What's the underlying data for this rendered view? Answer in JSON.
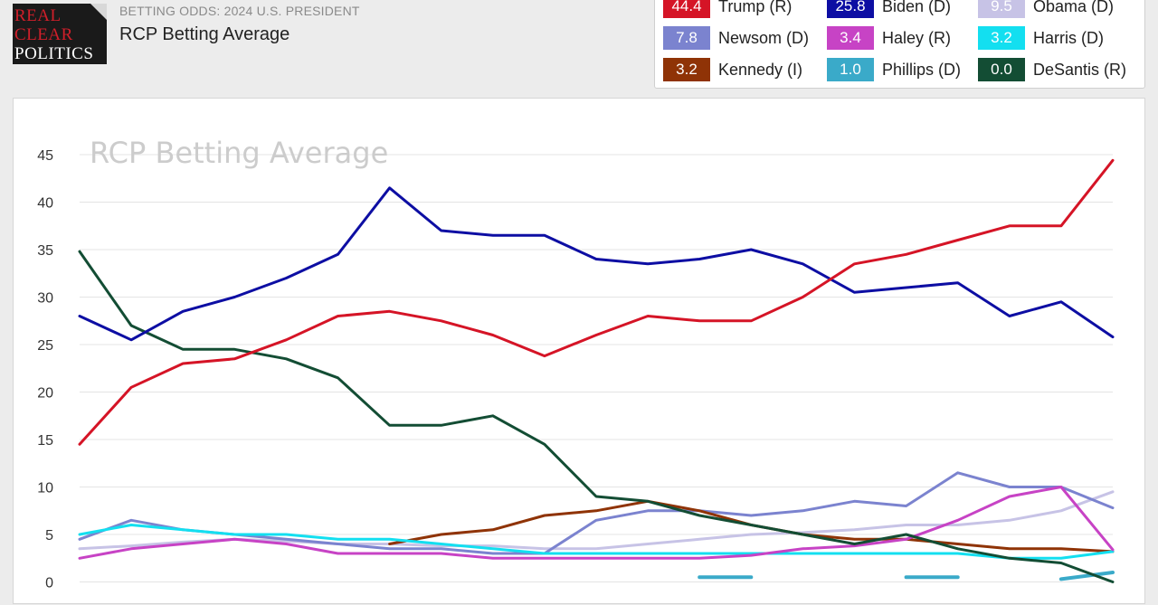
{
  "logo": {
    "line1": "REAL",
    "line2": "CLEAR",
    "line3": "POLITICS"
  },
  "header": {
    "kicker": "BETTING ODDS: 2024 U.S. PRESIDENT",
    "title": "RCP Betting Average"
  },
  "legend": [
    {
      "value": "44.4",
      "name": "Trump (R)",
      "color": "#d51426"
    },
    {
      "value": "25.8",
      "name": "Biden (D)",
      "color": "#0d0ea3"
    },
    {
      "value": "9.5",
      "name": "Obama (D)",
      "color": "#c7c3e6"
    },
    {
      "value": "7.8",
      "name": "Newsom (D)",
      "color": "#7b83cf"
    },
    {
      "value": "3.4",
      "name": "Haley (R)",
      "color": "#c743c5"
    },
    {
      "value": "3.2",
      "name": "Harris (D)",
      "color": "#13dff0"
    },
    {
      "value": "3.2",
      "name": "Kennedy (I)",
      "color": "#8f3306"
    },
    {
      "value": "1.0",
      "name": "Phillips (D)",
      "color": "#3aaac9"
    },
    {
      "value": "0.0",
      "name": "DeSantis (R)",
      "color": "#134d34"
    }
  ],
  "chart_data": {
    "type": "line",
    "title": "RCP Betting Average",
    "xlabel": "",
    "ylabel": "",
    "ylim": [
      0,
      45
    ],
    "yticks": [
      0,
      5,
      10,
      15,
      20,
      25,
      30,
      35,
      40,
      45
    ],
    "grid": true,
    "x": [
      0,
      5,
      10,
      15,
      20,
      25,
      30,
      35,
      40,
      45,
      50,
      55,
      60,
      65,
      70,
      75,
      80,
      85,
      90,
      95,
      100
    ],
    "series": [
      {
        "name": "Trump (R)",
        "color": "#d51426",
        "values": [
          14.5,
          20.5,
          23,
          23.5,
          25.5,
          28,
          28.5,
          27.5,
          26,
          23.8,
          26,
          28,
          27.5,
          27.5,
          30,
          33.5,
          34.5,
          36,
          37.5,
          37.5,
          44.4
        ]
      },
      {
        "name": "Biden (D)",
        "color": "#0d0ea3",
        "values": [
          28,
          25.5,
          28.5,
          30,
          32,
          34.5,
          41.5,
          37,
          36.5,
          36.5,
          34,
          33.5,
          34,
          35,
          33.5,
          30.5,
          31,
          31.5,
          28,
          29.5,
          25.8
        ]
      },
      {
        "name": "Obama (D)",
        "color": "#c7c3e6",
        "values": [
          3.5,
          3.8,
          4.2,
          4.5,
          4.3,
          4.0,
          4.0,
          3.8,
          3.8,
          3.5,
          3.5,
          4.0,
          4.5,
          5.0,
          5.2,
          5.5,
          6.0,
          6.0,
          6.5,
          7.5,
          9.5
        ]
      },
      {
        "name": "Newsom (D)",
        "color": "#7b83cf",
        "values": [
          4.5,
          6.5,
          5.5,
          5.0,
          4.5,
          4.0,
          3.5,
          3.5,
          3.0,
          3.0,
          6.5,
          7.5,
          7.5,
          7.0,
          7.5,
          8.5,
          8.0,
          11.5,
          10.0,
          10.0,
          7.8
        ]
      },
      {
        "name": "Haley (R)",
        "color": "#c743c5",
        "values": [
          2.5,
          3.5,
          4.0,
          4.5,
          4.0,
          3.0,
          3.0,
          3.0,
          2.5,
          2.5,
          2.5,
          2.5,
          2.5,
          2.8,
          3.5,
          3.8,
          4.5,
          6.5,
          9.0,
          10.0,
          3.4
        ]
      },
      {
        "name": "Harris (D)",
        "color": "#13dff0",
        "values": [
          5.0,
          6.0,
          5.5,
          5.0,
          5.0,
          4.5,
          4.5,
          4.0,
          3.5,
          3.0,
          3.0,
          3.0,
          3.0,
          3.0,
          3.0,
          3.0,
          3.0,
          3.0,
          2.5,
          2.5,
          3.2
        ]
      },
      {
        "name": "Kennedy (I)",
        "color": "#8f3306",
        "values": [
          null,
          null,
          null,
          null,
          null,
          null,
          4.0,
          5.0,
          5.5,
          7.0,
          7.5,
          8.5,
          7.5,
          6.0,
          5.0,
          4.5,
          4.5,
          4.0,
          3.5,
          3.5,
          3.2
        ]
      },
      {
        "name": "Phillips (D)",
        "color": "#3aaac9",
        "values": [
          null,
          null,
          null,
          null,
          null,
          null,
          null,
          null,
          null,
          null,
          null,
          null,
          0.5,
          0.5,
          null,
          null,
          0.5,
          0.5,
          null,
          0.3,
          1.0
        ]
      },
      {
        "name": "DeSantis (R)",
        "color": "#134d34",
        "values": [
          34.8,
          27,
          24.5,
          24.5,
          23.5,
          21.5,
          16.5,
          16.5,
          17.5,
          14.5,
          9.0,
          8.5,
          7.0,
          6.0,
          5.0,
          4.0,
          5.0,
          3.5,
          2.5,
          2.0,
          0.0
        ]
      }
    ]
  }
}
